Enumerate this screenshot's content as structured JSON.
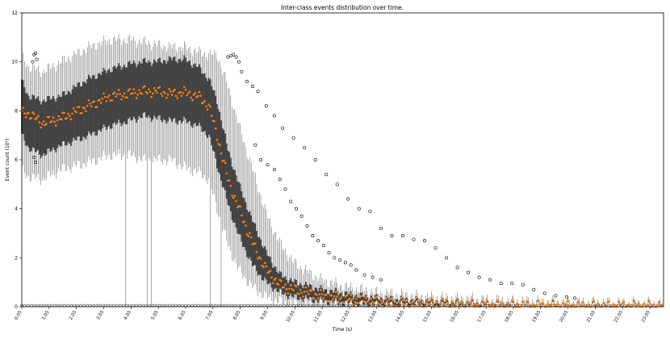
{
  "chart_data": {
    "type": "box",
    "title": "Inter-class events distribution over time.",
    "xlabel": "Time (s)",
    "ylabel": "Event count (10²)",
    "ylim": [
      0,
      12
    ],
    "xlim": [
      0.05,
      23.55
    ],
    "yticks": [
      0,
      2,
      4,
      6,
      8,
      10,
      12
    ],
    "xticks": [
      "0.05",
      "1.05",
      "2.05",
      "3.05",
      "4.05",
      "5.05",
      "6.05",
      "7.05",
      "8.05",
      "9.05",
      "10.05",
      "11.05",
      "12.05",
      "13.05",
      "14.05",
      "15.05",
      "16.05",
      "17.05",
      "18.05",
      "19.05",
      "20.05",
      "21.05",
      "22.05",
      "23.05"
    ],
    "grid": false,
    "colors": {
      "box": "#444444",
      "median": "#ff7f0e",
      "outlier": "#000000"
    },
    "box_series": {
      "x_start": 0.05,
      "x_step": 0.05,
      "count": 470,
      "profile_time": [
        0.05,
        0.3,
        0.8,
        1.5,
        2.5,
        3.3,
        4.0,
        4.5,
        5.0,
        5.5,
        6.0,
        6.5,
        6.9,
        7.2,
        7.6,
        8.0,
        8.5,
        9.0,
        9.5,
        10.0,
        11.0,
        12.0,
        13.0,
        14.0,
        15.0,
        16.0,
        17.0,
        18.0,
        20.0,
        23.55
      ],
      "median": [
        7.9,
        7.9,
        7.5,
        7.7,
        8.2,
        8.6,
        8.7,
        8.8,
        8.8,
        8.7,
        8.75,
        8.6,
        8.2,
        7.0,
        5.2,
        4.0,
        2.6,
        1.5,
        0.9,
        0.7,
        0.45,
        0.3,
        0.2,
        0.15,
        0.12,
        0.1,
        0.08,
        0.06,
        0.04,
        0.04
      ],
      "q1": [
        7.0,
        6.5,
        6.2,
        6.6,
        7.0,
        7.4,
        7.6,
        7.8,
        7.7,
        7.6,
        7.6,
        7.4,
        7.0,
        5.8,
        4.2,
        2.9,
        1.7,
        1.0,
        0.6,
        0.4,
        0.25,
        0.15,
        0.1,
        0.08,
        0.06,
        0.05,
        0.04,
        0.03,
        0.02,
        0.02
      ],
      "q3": [
        9.2,
        8.6,
        8.4,
        8.6,
        9.3,
        9.7,
        9.9,
        10.0,
        10.0,
        10.1,
        10.1,
        9.8,
        9.3,
        8.4,
        6.4,
        5.0,
        3.5,
        2.2,
        1.3,
        1.0,
        0.7,
        0.5,
        0.35,
        0.28,
        0.22,
        0.18,
        0.14,
        0.1,
        0.07,
        0.06
      ],
      "whisker_low": [
        5.6,
        5.3,
        5.2,
        5.6,
        5.9,
        6.2,
        6.2,
        6.0,
        6.0,
        6.0,
        5.7,
        5.5,
        5.2,
        4.0,
        2.5,
        1.5,
        0.8,
        0.4,
        0.2,
        0.1,
        0.05,
        0.02,
        0.01,
        0.0,
        0.0,
        0.0,
        0.0,
        0.0,
        0.0,
        0.0
      ],
      "whisker_high": [
        10.2,
        9.8,
        9.6,
        10.0,
        10.6,
        10.9,
        10.9,
        10.8,
        10.7,
        10.6,
        10.6,
        10.4,
        10.3,
        10.3,
        9.0,
        7.4,
        5.6,
        3.8,
        2.6,
        1.8,
        1.1,
        0.8,
        0.6,
        0.5,
        0.4,
        0.35,
        0.3,
        0.25,
        0.2,
        0.15
      ],
      "low_whisker_drops": [
        {
          "x": 3.85,
          "y": 0.0
        },
        {
          "x": 4.65,
          "y": 0.0
        },
        {
          "x": 4.8,
          "y": 0.0
        },
        {
          "x": 6.95,
          "y": 0.0
        },
        {
          "x": 7.35,
          "y": 0.0
        }
      ]
    },
    "outlier_upper": [
      [
        0.45,
        10.0
      ],
      [
        0.5,
        10.3
      ],
      [
        0.55,
        10.35
      ],
      [
        0.6,
        10.1
      ],
      [
        0.5,
        6.1
      ],
      [
        0.55,
        5.9
      ],
      [
        7.6,
        10.2
      ],
      [
        7.7,
        10.25
      ],
      [
        7.8,
        10.3
      ],
      [
        7.9,
        10.2
      ],
      [
        8.0,
        10.0
      ],
      [
        8.1,
        9.6
      ],
      [
        8.3,
        9.2
      ],
      [
        8.5,
        9.0
      ],
      [
        8.7,
        8.8
      ],
      [
        9.0,
        8.2
      ],
      [
        9.3,
        7.8
      ],
      [
        9.6,
        7.3
      ],
      [
        10.0,
        6.9
      ],
      [
        10.4,
        6.5
      ],
      [
        10.8,
        6.0
      ],
      [
        11.2,
        5.4
      ],
      [
        11.6,
        5.0
      ],
      [
        12.0,
        4.4
      ],
      [
        12.4,
        4.0
      ],
      [
        12.8,
        3.9
      ],
      [
        13.2,
        3.2
      ],
      [
        13.6,
        2.9
      ],
      [
        14.0,
        2.9
      ],
      [
        14.4,
        2.75
      ],
      [
        14.8,
        2.7
      ],
      [
        15.2,
        2.4
      ],
      [
        15.6,
        2.0
      ],
      [
        16.0,
        1.6
      ],
      [
        16.4,
        1.4
      ],
      [
        16.8,
        1.2
      ],
      [
        17.2,
        1.1
      ],
      [
        17.6,
        0.95
      ],
      [
        18.0,
        0.95
      ],
      [
        18.4,
        0.9
      ],
      [
        18.8,
        0.7
      ],
      [
        19.2,
        0.55
      ],
      [
        19.6,
        0.45
      ],
      [
        20.0,
        0.4
      ],
      [
        20.3,
        0.35
      ]
    ],
    "outlier_mid": [
      [
        8.6,
        6.6
      ],
      [
        8.8,
        6.0
      ],
      [
        9.05,
        5.8
      ],
      [
        9.3,
        5.6
      ],
      [
        9.5,
        5.2
      ],
      [
        9.7,
        4.8
      ],
      [
        9.9,
        4.3
      ],
      [
        10.1,
        4.0
      ],
      [
        10.3,
        3.7
      ],
      [
        10.5,
        3.3
      ],
      [
        10.7,
        2.9
      ],
      [
        10.9,
        2.7
      ],
      [
        11.1,
        2.5
      ],
      [
        11.3,
        2.2
      ],
      [
        11.5,
        2.0
      ],
      [
        11.7,
        1.9
      ],
      [
        11.9,
        1.8
      ],
      [
        12.1,
        1.7
      ],
      [
        12.3,
        1.5
      ],
      [
        12.6,
        1.3
      ],
      [
        12.9,
        1.2
      ],
      [
        13.2,
        1.1
      ]
    ],
    "outlier_low_band": {
      "x_start": 0.05,
      "x_end": 23.55,
      "step": 0.12,
      "y": 0.05
    }
  }
}
